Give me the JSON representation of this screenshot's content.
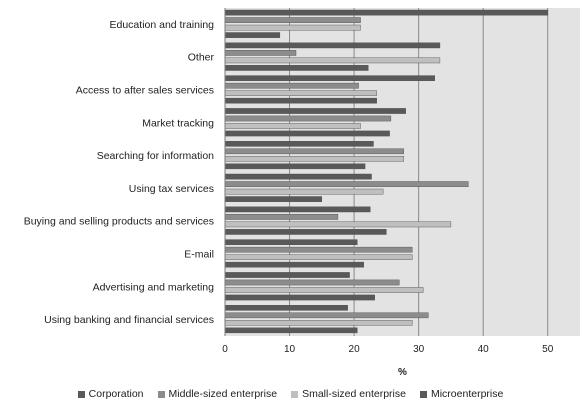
{
  "chart_data": {
    "type": "bar",
    "orientation": "horizontal",
    "categories": [
      "Education and training",
      "Other",
      "Access to after sales services",
      "Market tracking",
      "Searching for information",
      "Using tax services",
      "Buying and selling products and services",
      "E-mail",
      "Advertising and marketing",
      "Using banking and financial services"
    ],
    "series": [
      {
        "name": "Corporation",
        "color": "#595959",
        "values": [
          50,
          33.3,
          32.5,
          28,
          23,
          22.7,
          22.5,
          20.5,
          19.3,
          19
        ]
      },
      {
        "name": "Middle-sized enterprise",
        "color": "#8c8c8c",
        "values": [
          21,
          11,
          20.7,
          25.7,
          27.7,
          37.7,
          17.5,
          29,
          27,
          31.5
        ]
      },
      {
        "name": "Small-sized enterprise",
        "color": "#bfbfbf",
        "values": [
          21,
          33.3,
          23.5,
          21,
          27.7,
          24.5,
          35,
          29,
          30.7,
          29
        ]
      },
      {
        "name": "Microenterprise",
        "color": "#595959",
        "values": [
          8.5,
          22.2,
          23.5,
          25.5,
          21.7,
          15,
          25,
          21.5,
          23.2,
          20.5
        ]
      }
    ],
    "xlabel": "%",
    "ylabel": "",
    "xlim": [
      0,
      55
    ],
    "xticks": [
      "0",
      "10",
      "20",
      "30",
      "40",
      "50"
    ],
    "grid": true,
    "plot_background": "#e3e3e3",
    "legend_position": "bottom"
  }
}
